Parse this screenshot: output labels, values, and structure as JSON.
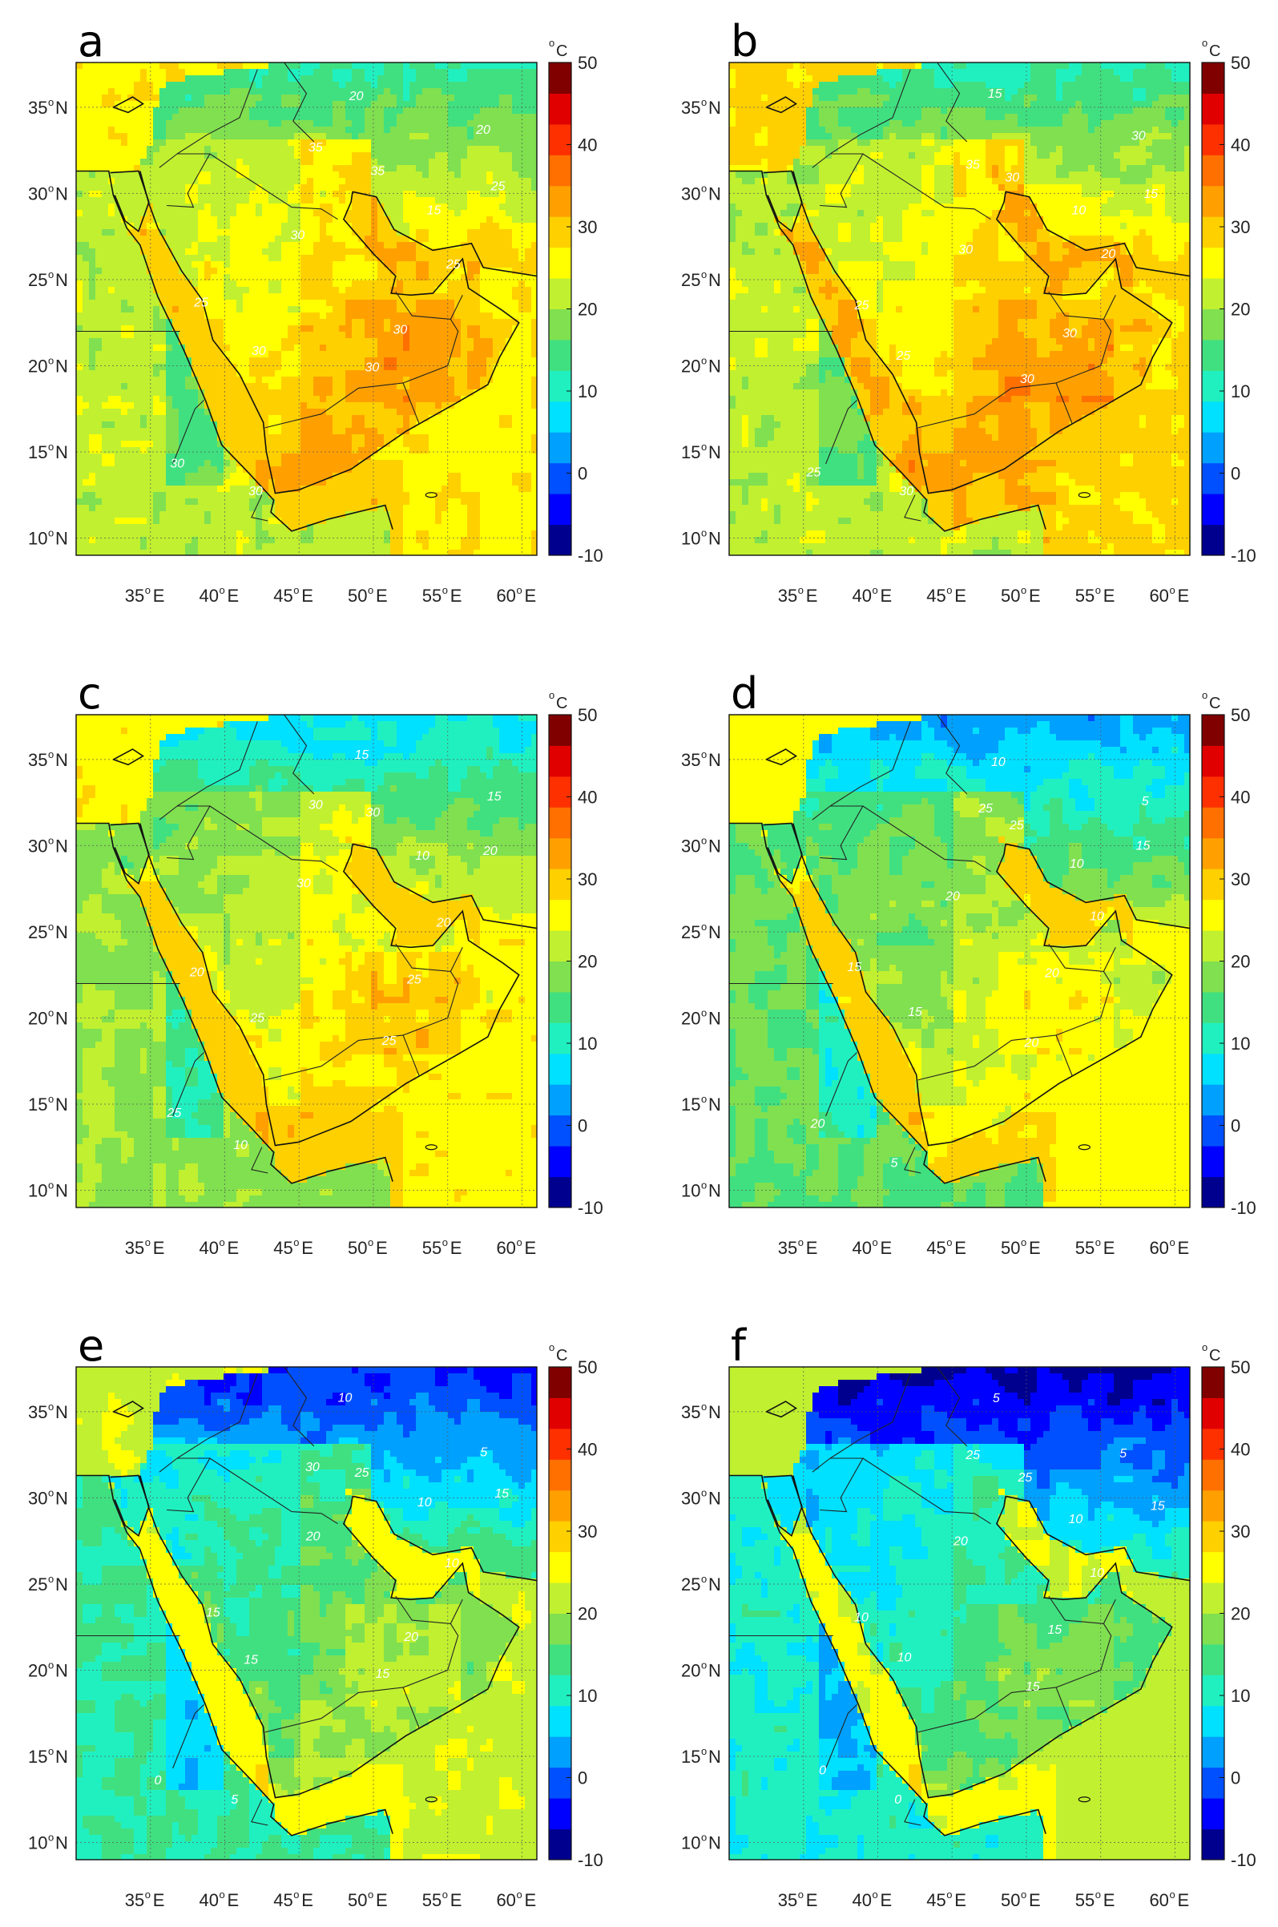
{
  "figure": {
    "panels": [
      {
        "label": "a",
        "variant": 0
      },
      {
        "label": "b",
        "variant": 1
      },
      {
        "label": "c",
        "variant": 2
      },
      {
        "label": "d",
        "variant": 3
      },
      {
        "label": "e",
        "variant": 4
      },
      {
        "label": "f",
        "variant": 5
      }
    ],
    "lat_ticks": [
      "35",
      "30",
      "25",
      "20",
      "15",
      "10"
    ],
    "lat_suffix": "N",
    "lon_ticks": [
      "35",
      "40",
      "45",
      "50",
      "55",
      "60"
    ],
    "lon_suffix": "E",
    "degree_symbol": "o",
    "colorbar": {
      "unit": "C",
      "ticks": [
        "50",
        "40",
        "30",
        "20",
        "10",
        "0",
        "-10"
      ]
    },
    "contour_labels_by_panel": [
      [
        "35",
        "35",
        "30",
        "30",
        "30",
        "30",
        "25",
        "25",
        "20",
        "20",
        "30",
        "30",
        "25",
        "15"
      ],
      [
        "35",
        "30",
        "30",
        "30",
        "30",
        "25",
        "25",
        "20",
        "15",
        "30",
        "30",
        "25",
        "15",
        "10"
      ],
      [
        "30",
        "30",
        "30",
        "25",
        "25",
        "25",
        "20",
        "20",
        "15",
        "15",
        "10",
        "25",
        "20",
        "10"
      ],
      [
        "25",
        "25",
        "20",
        "20",
        "20",
        "15",
        "15",
        "10",
        "10",
        "5",
        "5",
        "20",
        "15",
        "10"
      ],
      [
        "30",
        "25",
        "20",
        "20",
        "15",
        "15",
        "15",
        "10",
        "10",
        "5",
        "5",
        "0",
        "15",
        "10"
      ],
      [
        "25",
        "25",
        "20",
        "15",
        "15",
        "10",
        "10",
        "10",
        "5",
        "5",
        "0",
        "0",
        "15",
        "10"
      ]
    ],
    "colors": {
      "scale": [
        "#00008f",
        "#0000ff",
        "#0050ff",
        "#00a0ff",
        "#00e0ff",
        "#20f0c0",
        "#40e080",
        "#80e050",
        "#c0f030",
        "#ffff00",
        "#ffd000",
        "#ffa000",
        "#ff7000",
        "#ff3000",
        "#e00000",
        "#800000"
      ]
    }
  }
}
